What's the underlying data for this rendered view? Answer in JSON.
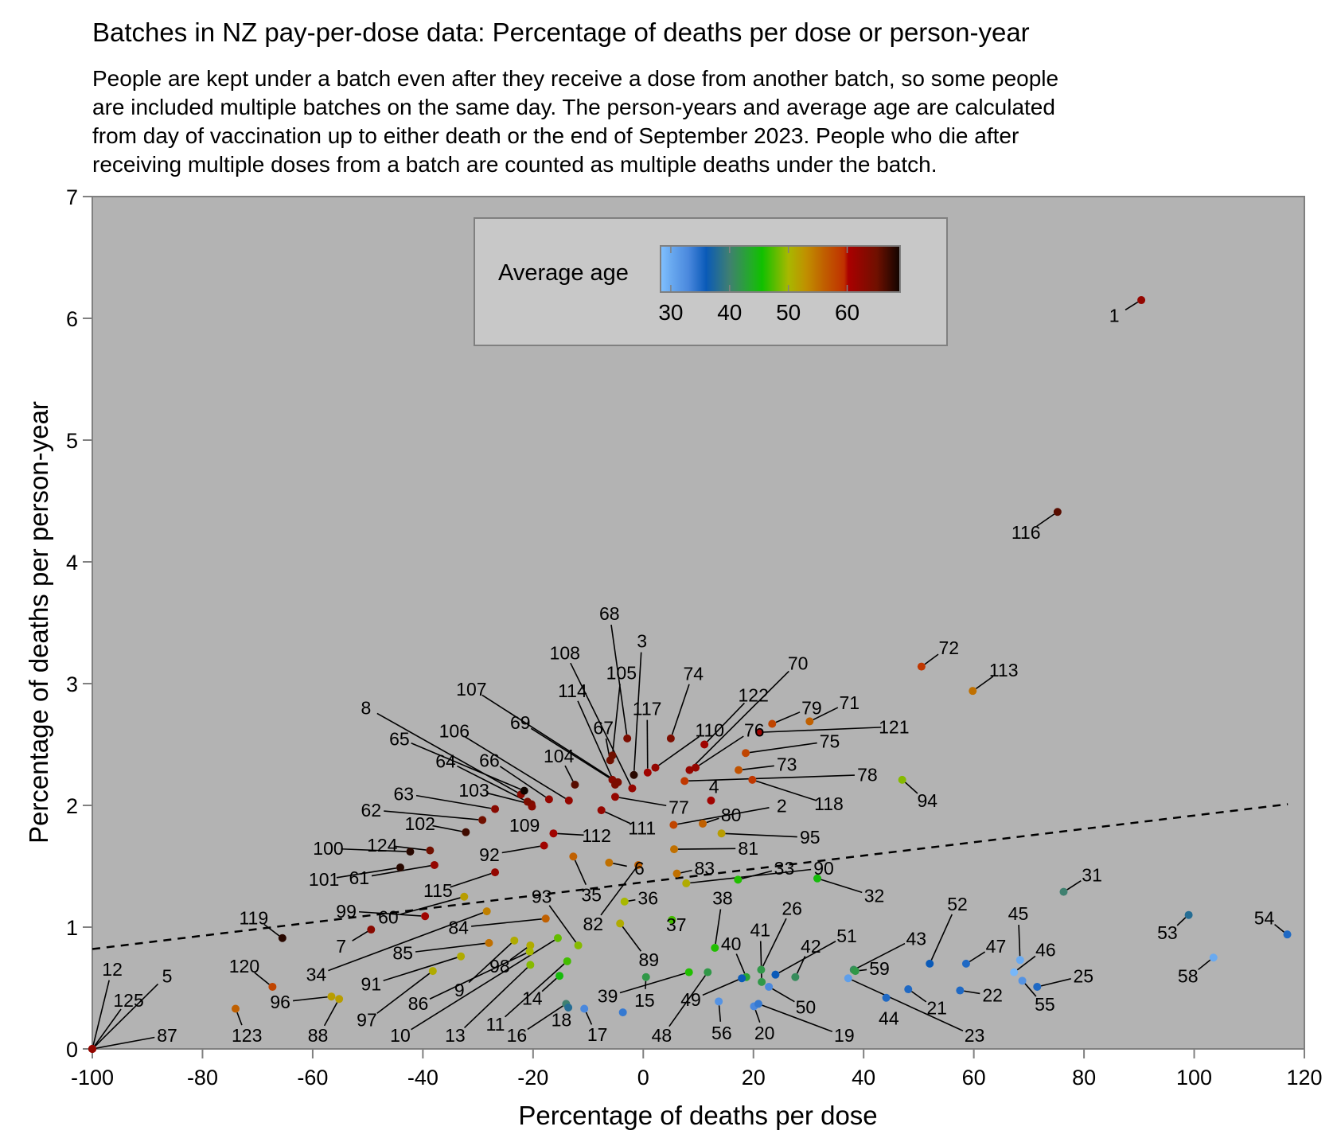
{
  "chart_data": {
    "type": "scatter",
    "title": "Batches in NZ pay-per-dose data: Percentage of deaths per dose or person-year",
    "subtitle_lines": [
      "People are kept under a batch even after they receive a dose from another batch, so some people",
      "are included multiple batches on the same day. The person-years and average age are calculated",
      "from day of vaccination up to either death or the end of September 2023. People who die after",
      "receiving multiple doses from a batch are counted as multiple deaths under the batch."
    ],
    "xlabel": "Percentage of deaths per dose",
    "ylabel": "Percentage of deaths per person-year",
    "xlim": [
      -100,
      120
    ],
    "ylim": [
      0,
      7
    ],
    "xticks": [
      "-100",
      "-80",
      "-60",
      "-40",
      "-20",
      "0",
      "20",
      "40",
      "60",
      "80",
      "100",
      "120"
    ],
    "yticks": [
      "0",
      "1",
      "2",
      "3",
      "4",
      "5",
      "6",
      "7"
    ],
    "grid": false,
    "background": "#b3b3b3",
    "trendline": {
      "style": "dashed",
      "x": [
        -100,
        117
      ],
      "y": [
        0.82,
        2.01
      ]
    },
    "legend": {
      "title": "Average age",
      "placement": "top-center",
      "ticks": [
        "30",
        "40",
        "50",
        "60"
      ],
      "range": [
        28.25,
        69
      ],
      "stops": [
        [
          28.25,
          "#80c0ff"
        ],
        [
          30,
          "#6aaaf0"
        ],
        [
          33,
          "#4a88dd"
        ],
        [
          36,
          "#0a5ab8"
        ],
        [
          40,
          "#3f8070"
        ],
        [
          44,
          "#20b020"
        ],
        [
          45.5,
          "#10c000"
        ],
        [
          50,
          "#a8b800"
        ],
        [
          53,
          "#c09000"
        ],
        [
          56,
          "#c06000"
        ],
        [
          59.5,
          "#c03000"
        ],
        [
          60.2,
          "#aa0000"
        ],
        [
          65,
          "#701000"
        ],
        [
          69,
          "#100500"
        ]
      ]
    },
    "points": [
      {
        "label": "1",
        "x": 90.4,
        "y": 6.15,
        "age": 62
      },
      {
        "label": "116",
        "x": 75.2,
        "y": 4.41,
        "age": 66
      },
      {
        "label": "72",
        "x": 50.5,
        "y": 3.14,
        "age": 59
      },
      {
        "label": "113",
        "x": 59.8,
        "y": 2.94,
        "age": 55
      },
      {
        "label": "94",
        "x": 47.0,
        "y": 2.21,
        "age": 49
      },
      {
        "label": "31",
        "x": 76.3,
        "y": 1.29,
        "age": 40
      },
      {
        "label": "53",
        "x": 99.0,
        "y": 1.1,
        "age": 38
      },
      {
        "label": "54",
        "x": 116.9,
        "y": 0.94,
        "age": 35
      },
      {
        "label": "58",
        "x": 103.5,
        "y": 0.75,
        "age": 30
      },
      {
        "label": "52",
        "x": 52.0,
        "y": 0.7,
        "age": 36
      },
      {
        "label": "47",
        "x": 58.6,
        "y": 0.7,
        "age": 35
      },
      {
        "label": "45",
        "x": 68.4,
        "y": 0.73,
        "age": 30
      },
      {
        "label": "46",
        "x": 67.3,
        "y": 0.63,
        "age": 29
      },
      {
        "label": "55",
        "x": 68.8,
        "y": 0.56,
        "age": 32
      },
      {
        "label": "25",
        "x": 71.5,
        "y": 0.51,
        "age": 35
      },
      {
        "label": "22",
        "x": 57.5,
        "y": 0.48,
        "age": 35
      },
      {
        "label": "21",
        "x": 48.1,
        "y": 0.49,
        "age": 35
      },
      {
        "label": "44",
        "x": 44.1,
        "y": 0.42,
        "age": 35
      },
      {
        "label": "43",
        "x": 38.2,
        "y": 0.65,
        "age": 41
      },
      {
        "label": "59",
        "x": 38.5,
        "y": 0.64,
        "age": 42
      },
      {
        "label": "23",
        "x": 37.2,
        "y": 0.58,
        "age": 31
      },
      {
        "label": "51",
        "x": 24.0,
        "y": 0.61,
        "age": 36
      },
      {
        "label": "42",
        "x": 27.6,
        "y": 0.59,
        "age": 41
      },
      {
        "label": "26",
        "x": 21.4,
        "y": 0.65,
        "age": 42
      },
      {
        "label": "41",
        "x": 21.5,
        "y": 0.55,
        "age": 42
      },
      {
        "label": "50",
        "x": 22.8,
        "y": 0.51,
        "age": 33
      },
      {
        "label": "40",
        "x": 18.7,
        "y": 0.59,
        "age": 43
      },
      {
        "label": "49",
        "x": 17.9,
        "y": 0.58,
        "age": 36
      },
      {
        "label": "38",
        "x": 13.0,
        "y": 0.83,
        "age": 46
      },
      {
        "label": "56",
        "x": 13.7,
        "y": 0.39,
        "age": 32
      },
      {
        "label": "20",
        "x": 20.1,
        "y": 0.35,
        "age": 33
      },
      {
        "label": "19",
        "x": 20.9,
        "y": 0.37,
        "age": 34
      },
      {
        "label": "39",
        "x": 8.3,
        "y": 0.63,
        "age": 46
      },
      {
        "label": "15",
        "x": 0.5,
        "y": 0.59,
        "age": 42
      },
      {
        "label": "48",
        "x": 11.7,
        "y": 0.63,
        "age": 42
      },
      {
        "label": "37",
        "x": 5.2,
        "y": 1.06,
        "age": 47
      },
      {
        "label": "36",
        "x": -3.4,
        "y": 1.21,
        "age": 50
      },
      {
        "label": "89",
        "x": -4.2,
        "y": 1.03,
        "age": 51
      },
      {
        "label": "82",
        "x": -0.9,
        "y": 1.51,
        "age": 56
      },
      {
        "label": "6",
        "x": -6.2,
        "y": 1.53,
        "age": 55
      },
      {
        "label": "35",
        "x": -12.7,
        "y": 1.58,
        "age": 56
      },
      {
        "label": "93",
        "x": -11.8,
        "y": 0.85,
        "age": 49
      },
      {
        "label": "115",
        "x": -26.9,
        "y": 1.45,
        "age": 62
      },
      {
        "label": "99",
        "x": -39.6,
        "y": 1.09,
        "age": 61
      },
      {
        "label": "60",
        "x": -32.5,
        "y": 1.25,
        "age": 52
      },
      {
        "label": "7",
        "x": -49.4,
        "y": 0.98,
        "age": 63
      },
      {
        "label": "119",
        "x": -65.5,
        "y": 0.91,
        "age": 68
      },
      {
        "label": "84",
        "x": -17.7,
        "y": 1.07,
        "age": 56
      },
      {
        "label": "34",
        "x": -28.4,
        "y": 1.13,
        "age": 54
      },
      {
        "label": "85",
        "x": -28.0,
        "y": 0.87,
        "age": 55
      },
      {
        "label": "91",
        "x": -33.1,
        "y": 0.76,
        "age": 51
      },
      {
        "label": "97",
        "x": -38.2,
        "y": 0.64,
        "age": 51
      },
      {
        "label": "98",
        "x": -20.5,
        "y": 0.85,
        "age": 51
      },
      {
        "label": "9",
        "x": -23.4,
        "y": 0.89,
        "age": 51
      },
      {
        "label": "86",
        "x": -20.6,
        "y": 0.8,
        "age": 50
      },
      {
        "label": "10",
        "x": -15.5,
        "y": 0.91,
        "age": 48
      },
      {
        "label": "13",
        "x": -20.5,
        "y": 0.69,
        "age": 49
      },
      {
        "label": "11",
        "x": -13.8,
        "y": 0.72,
        "age": 47
      },
      {
        "label": "14",
        "x": -15.2,
        "y": 0.6,
        "age": 45
      },
      {
        "label": "16",
        "x": -14.0,
        "y": 0.37,
        "age": 40
      },
      {
        "label": "18",
        "x": -13.6,
        "y": 0.34,
        "age": 38
      },
      {
        "label": "17",
        "x": -10.7,
        "y": 0.33,
        "age": 33
      },
      {
        "label": "",
        "x": -3.7,
        "y": 0.3,
        "age": 34
      },
      {
        "label": "88",
        "x": -55.2,
        "y": 0.41,
        "age": 52
      },
      {
        "label": "96",
        "x": -56.6,
        "y": 0.43,
        "age": 52
      },
      {
        "label": "120",
        "x": -67.3,
        "y": 0.51,
        "age": 58
      },
      {
        "label": "123",
        "x": -74.0,
        "y": 0.33,
        "age": 56
      },
      {
        "label": "12",
        "x": -100,
        "y": 0,
        "age": 62
      },
      {
        "label": "125",
        "x": -100,
        "y": 0,
        "age": 62
      },
      {
        "label": "5",
        "x": -100,
        "y": 0,
        "age": 62
      },
      {
        "label": "87",
        "x": -100,
        "y": 0,
        "age": 62
      },
      {
        "label": "100",
        "x": -42.3,
        "y": 1.62,
        "age": 68
      },
      {
        "label": "124",
        "x": -38.7,
        "y": 1.63,
        "age": 65
      },
      {
        "label": "101",
        "x": -44.1,
        "y": 1.49,
        "age": 68
      },
      {
        "label": "61",
        "x": -37.9,
        "y": 1.51,
        "age": 62
      },
      {
        "label": "92",
        "x": -18.0,
        "y": 1.67,
        "age": 61
      },
      {
        "label": "112",
        "x": -16.3,
        "y": 1.77,
        "age": 61
      },
      {
        "label": "102",
        "x": -32.2,
        "y": 1.78,
        "age": 67
      },
      {
        "label": "62",
        "x": -29.2,
        "y": 1.88,
        "age": 65
      },
      {
        "label": "63",
        "x": -26.9,
        "y": 1.97,
        "age": 63
      },
      {
        "label": "103",
        "x": -20.3,
        "y": 2.01,
        "age": 64
      },
      {
        "label": "109",
        "x": -20.2,
        "y": 1.99,
        "age": 63
      },
      {
        "label": "8",
        "x": -22.2,
        "y": 2.09,
        "age": 63
      },
      {
        "label": "65",
        "x": -21.6,
        "y": 2.12,
        "age": 72
      },
      {
        "label": "64",
        "x": -21.0,
        "y": 2.03,
        "age": 64
      },
      {
        "label": "66",
        "x": -17.1,
        "y": 2.05,
        "age": 62
      },
      {
        "label": "106",
        "x": -13.5,
        "y": 2.04,
        "age": 62
      },
      {
        "label": "104",
        "x": -12.4,
        "y": 2.17,
        "age": 66
      },
      {
        "label": "69",
        "x": -5.6,
        "y": 2.21,
        "age": 63
      },
      {
        "label": "107",
        "x": -4.6,
        "y": 2.19,
        "age": 64
      },
      {
        "label": "114",
        "x": -5.1,
        "y": 2.17,
        "age": 64
      },
      {
        "label": "108",
        "x": -2.0,
        "y": 2.14,
        "age": 62
      },
      {
        "label": "67",
        "x": -6.0,
        "y": 2.37,
        "age": 65
      },
      {
        "label": "105",
        "x": -5.6,
        "y": 2.41,
        "age": 65
      },
      {
        "label": "68",
        "x": -2.9,
        "y": 2.55,
        "age": 64
      },
      {
        "label": "3",
        "x": -1.7,
        "y": 2.25,
        "age": 68
      },
      {
        "label": "117",
        "x": 0.8,
        "y": 2.27,
        "age": 61
      },
      {
        "label": "74",
        "x": 5.0,
        "y": 2.55,
        "age": 64
      },
      {
        "label": "110",
        "x": 2.2,
        "y": 2.31,
        "age": 62
      },
      {
        "label": "77",
        "x": -5.1,
        "y": 2.07,
        "age": 62
      },
      {
        "label": "111",
        "x": -7.6,
        "y": 1.96,
        "age": 62
      },
      {
        "label": "122",
        "x": 11.1,
        "y": 2.5,
        "age": 61
      },
      {
        "label": "70",
        "x": 8.4,
        "y": 2.29,
        "age": 62
      },
      {
        "label": "76",
        "x": 9.5,
        "y": 2.31,
        "age": 62
      },
      {
        "label": "121",
        "x": 21.1,
        "y": 2.6,
        "age": 61
      },
      {
        "label": "79",
        "x": 23.4,
        "y": 2.67,
        "age": 58
      },
      {
        "label": "71",
        "x": 30.2,
        "y": 2.69,
        "age": 56
      },
      {
        "label": "75",
        "x": 18.6,
        "y": 2.43,
        "age": 58
      },
      {
        "label": "73",
        "x": 17.3,
        "y": 2.29,
        "age": 57
      },
      {
        "label": "78",
        "x": 7.5,
        "y": 2.2,
        "age": 59
      },
      {
        "label": "118",
        "x": 19.8,
        "y": 2.21,
        "age": 59
      },
      {
        "label": "4",
        "x": 12.3,
        "y": 2.04,
        "age": 61
      },
      {
        "label": "80",
        "x": 10.8,
        "y": 1.85,
        "age": 56
      },
      {
        "label": "2",
        "x": 5.5,
        "y": 1.84,
        "age": 58
      },
      {
        "label": "95",
        "x": 14.2,
        "y": 1.77,
        "age": 52
      },
      {
        "label": "81",
        "x": 5.6,
        "y": 1.64,
        "age": 55
      },
      {
        "label": "83",
        "x": 6.1,
        "y": 1.44,
        "age": 55
      },
      {
        "label": "33",
        "x": 17.2,
        "y": 1.39,
        "age": 46
      },
      {
        "label": "90",
        "x": 7.8,
        "y": 1.36,
        "age": 51
      },
      {
        "label": "32",
        "x": 31.6,
        "y": 1.4,
        "age": 45
      }
    ]
  }
}
